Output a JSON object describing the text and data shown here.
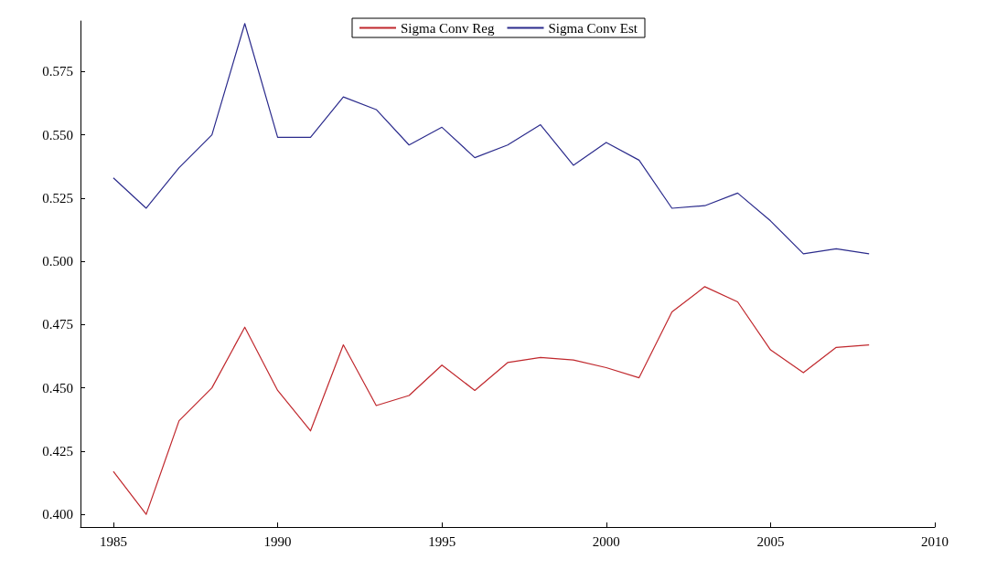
{
  "chart_data": {
    "type": "line",
    "x": [
      1985,
      1986,
      1987,
      1988,
      1989,
      1990,
      1991,
      1992,
      1993,
      1994,
      1995,
      1996,
      1997,
      1998,
      1999,
      2000,
      2001,
      2002,
      2003,
      2004,
      2005,
      2006,
      2007,
      2008
    ],
    "series": [
      {
        "name": "Sigma Conv Reg",
        "color": "#c0282d",
        "values": [
          0.417,
          0.4,
          0.437,
          0.45,
          0.474,
          0.449,
          0.433,
          0.467,
          0.443,
          0.447,
          0.459,
          0.449,
          0.46,
          0.462,
          0.461,
          0.458,
          0.454,
          0.48,
          0.49,
          0.484,
          0.465,
          0.456,
          0.466,
          0.467
        ]
      },
      {
        "name": "Sigma Conv Est",
        "color": "#2b2b8c",
        "values": [
          0.533,
          0.521,
          0.537,
          0.55,
          0.594,
          0.549,
          0.549,
          0.565,
          0.56,
          0.546,
          0.553,
          0.541,
          0.546,
          0.554,
          0.538,
          0.547,
          0.54,
          0.521,
          0.522,
          0.527,
          0.516,
          0.503,
          0.505,
          0.503
        ]
      }
    ],
    "xlim": [
      1984,
      2010
    ],
    "xticks": [
      1985,
      1990,
      1995,
      2000,
      2005,
      2010
    ],
    "ylim": [
      0.395,
      0.595
    ],
    "yticks": [
      {
        "value": 0.4,
        "label": "0.400"
      },
      0.425,
      {
        "value": 0.45,
        "label": "0.450"
      },
      0.475,
      {
        "value": 0.5,
        "label": "0.500"
      },
      0.525,
      {
        "value": 0.55,
        "label": "0.550"
      },
      0.575
    ],
    "legend": "top",
    "grid": false,
    "marker": "none",
    "line_style": "solid"
  }
}
